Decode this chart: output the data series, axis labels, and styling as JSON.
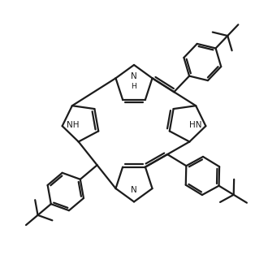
{
  "bg": "#ffffff",
  "lc": "#1c1c1c",
  "lw": 1.6,
  "figsize": [
    3.3,
    3.3
  ],
  "dpi": 100,
  "xlim": [
    -5,
    5
  ],
  "ylim": [
    -5,
    5
  ]
}
